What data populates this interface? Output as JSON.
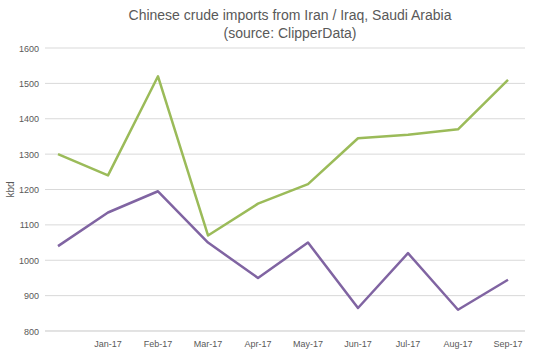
{
  "chart_data": {
    "type": "line",
    "title": "Chinese crude imports from Iran / Iraq, Saudi Arabia",
    "subtitle": "(source: ClipperData)",
    "y_label": "kbd",
    "categories": [
      null,
      "Jan-17",
      "Feb-17",
      "Mar-17",
      "Apr-17",
      "May-17",
      "Jun-17",
      "Jul-17",
      "Aug-17",
      "Sep-17"
    ],
    "series": [
      {
        "color": "#9bbb59",
        "values": [
          1300,
          1240,
          1520,
          1070,
          1160,
          1215,
          1345,
          1355,
          1370,
          1510
        ]
      },
      {
        "color": "#8064a2",
        "values": [
          1040,
          1135,
          1195,
          1050,
          950,
          1050,
          865,
          1020,
          860,
          945
        ]
      }
    ],
    "ylim": [
      800,
      1600
    ],
    "yticks": [
      800,
      900,
      1000,
      1100,
      1200,
      1300,
      1400,
      1500,
      1600
    ],
    "grid": true
  }
}
